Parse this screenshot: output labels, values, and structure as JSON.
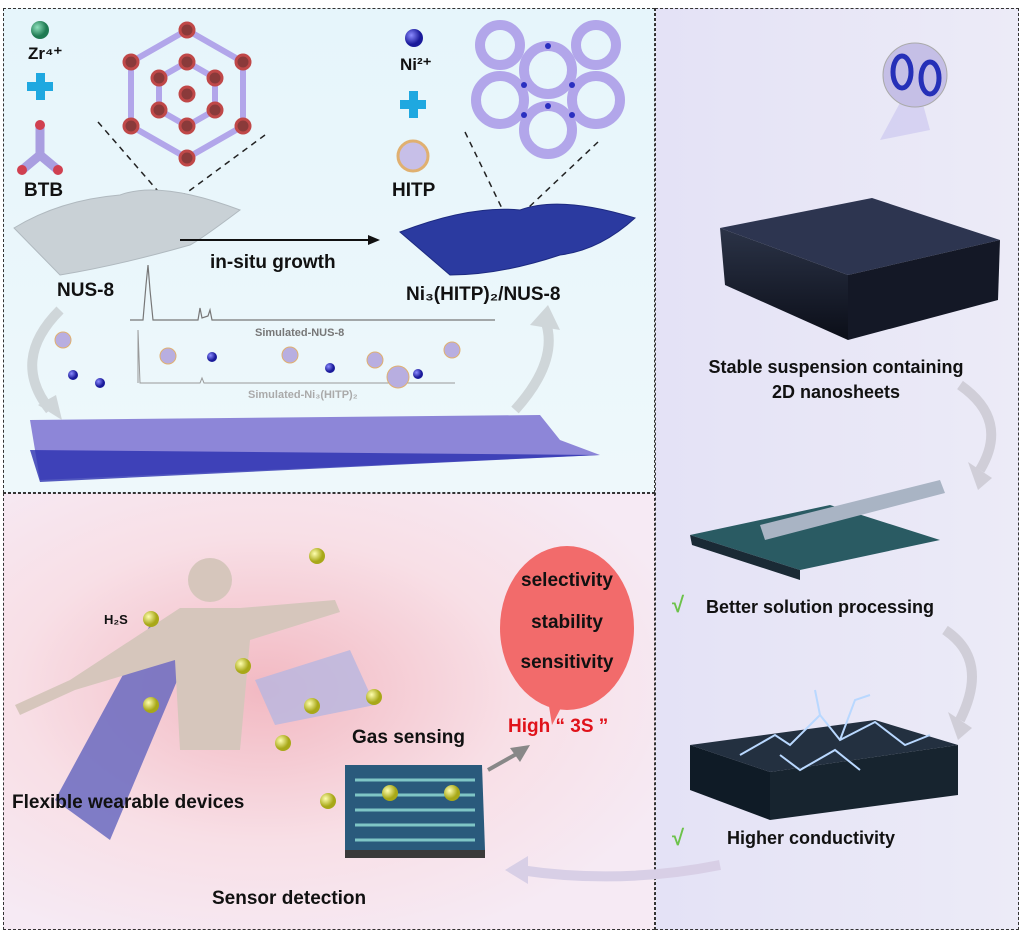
{
  "top_panel": {
    "zr_label": "Zr⁴⁺",
    "btb_label": "BTB",
    "ni_label": "Ni²⁺",
    "hitp_label": "HITP",
    "nus8_label": "NUS-8",
    "arrow_label": "in-situ growth",
    "product_label": "Ni₃(HITP)₂/NUS-8",
    "xrd_label_1": "Simulated-NUS-8",
    "xrd_label_2": "Simulated-Ni₃(HITP)₂"
  },
  "right_panel": {
    "suspension_label_line1": "Stable suspension containing",
    "suspension_label_line2": "2D nanosheets",
    "check_symbol": "√",
    "processing_label": "Better solution processing",
    "conductivity_label": "Higher conductivity"
  },
  "bottom_panel": {
    "h2s_label": "H₂S",
    "bubble_items": [
      "selectivity",
      "stability",
      "sensitivity"
    ],
    "high_3s_label": "High “ 3S ”",
    "gas_sensing_label": "Gas sensing",
    "wearable_label": "Flexible wearable devices",
    "sensor_label": "Sensor detection"
  },
  "colors": {
    "plus": "#1fa8e0",
    "zr": "#1f8a5e",
    "ni": "#2a2fc0",
    "bubble": "#f26b6b",
    "high_3s": "#e0121a",
    "check": "#6cc24a",
    "h2s": "#d8d83a"
  }
}
